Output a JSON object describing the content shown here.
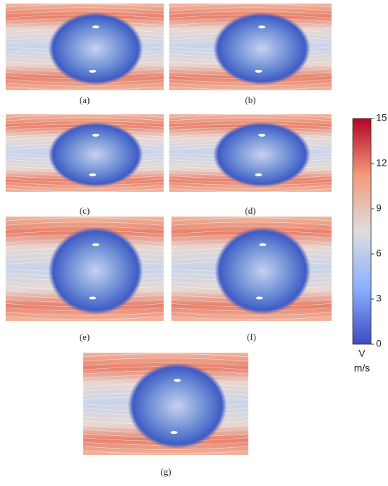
{
  "panels": [
    {
      "label": "(a)"
    },
    {
      "label": "(b)"
    },
    {
      "label": "(c)"
    },
    {
      "label": "(d)"
    },
    {
      "label": "(e)"
    },
    {
      "label": "(f)"
    },
    {
      "label": "(g)"
    }
  ],
  "colorbar": {
    "title": "V",
    "unit": "m/s",
    "range": [
      0,
      15
    ],
    "ticks": [
      0,
      3,
      6,
      9,
      12,
      15
    ]
  }
}
